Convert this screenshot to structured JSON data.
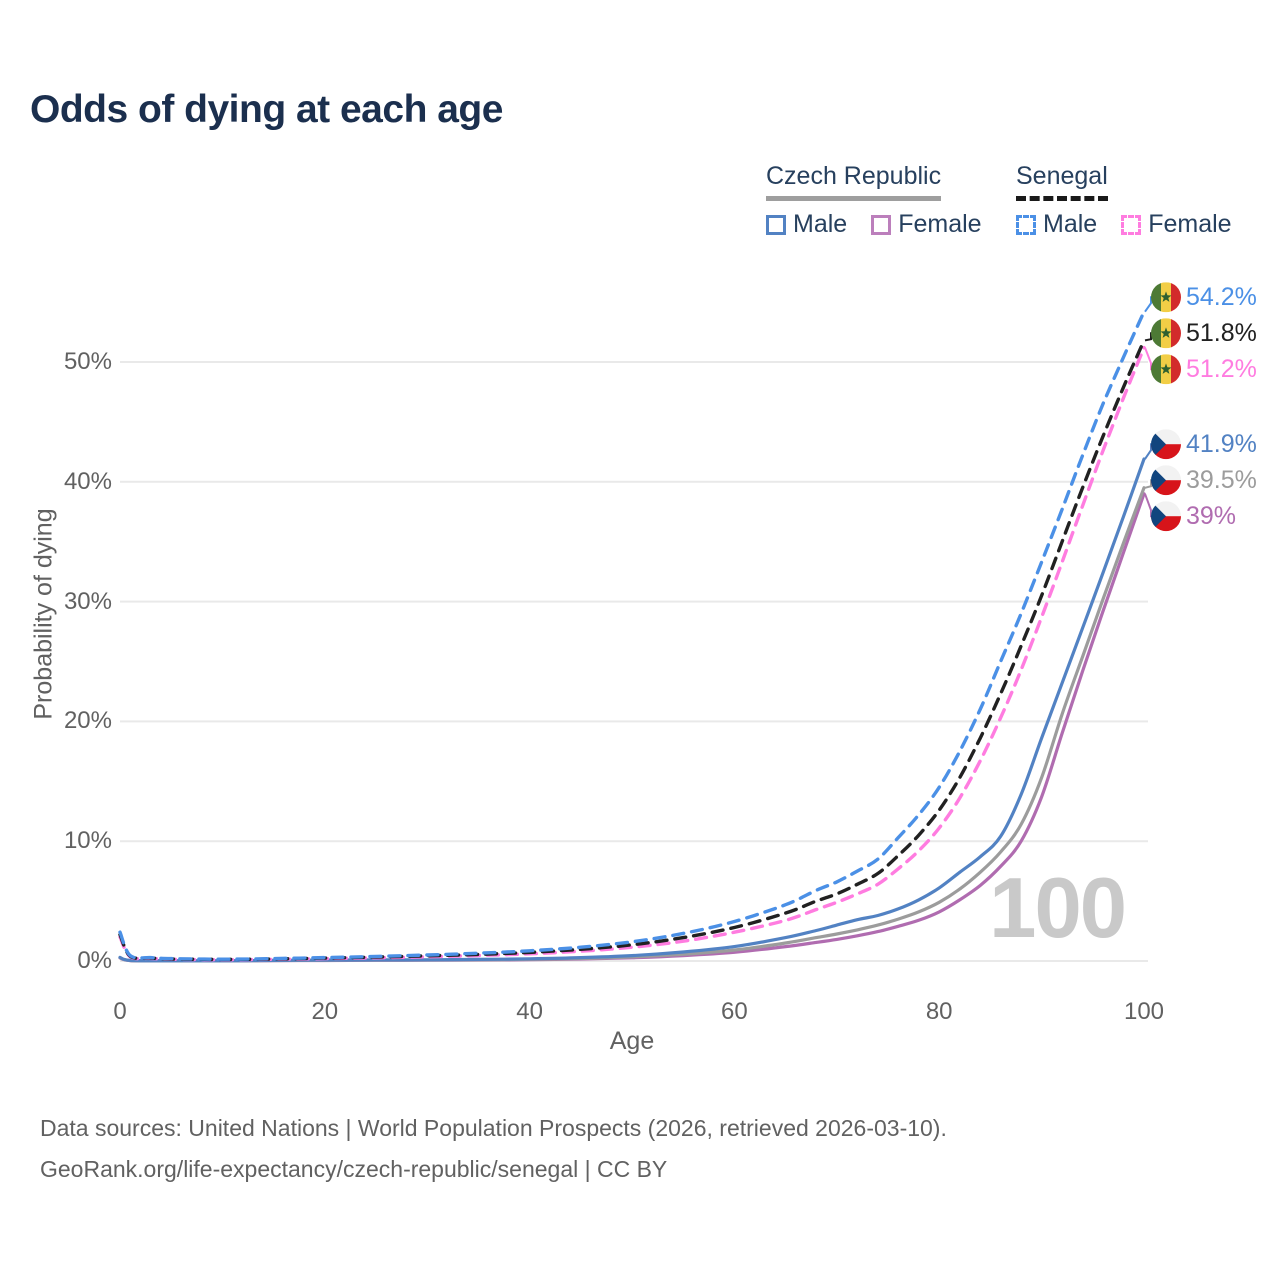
{
  "title": "Odds of dying at each age",
  "watermark_age": "100",
  "legend": {
    "groups": [
      {
        "label": "Czech Republic",
        "slug": "czech-republic",
        "line_style": "solid",
        "underline_color": "#9e9e9e",
        "items": [
          {
            "label": "Male",
            "color": "#5282c3",
            "dashed": false
          },
          {
            "label": "Female",
            "color": "#bc7fbc",
            "dashed": false
          }
        ]
      },
      {
        "label": "Senegal",
        "slug": "senegal",
        "line_style": "dashed",
        "underline_color": "#1a1a1a",
        "items": [
          {
            "label": "Male",
            "color": "#4b90e6",
            "dashed": true
          },
          {
            "label": "Female",
            "color": "#ff7ce0",
            "dashed": true
          }
        ]
      }
    ]
  },
  "axes": {
    "x": {
      "label": "Age",
      "tick_labels": [
        "0",
        "20",
        "40",
        "60",
        "80",
        "100"
      ],
      "tick_values": [
        0,
        20,
        40,
        60,
        80,
        100
      ],
      "range": [
        0,
        100
      ]
    },
    "y": {
      "label": "Probability of dying",
      "tick_labels": [
        "0%",
        "10%",
        "20%",
        "30%",
        "40%",
        "50%"
      ],
      "tick_values": [
        0,
        10,
        20,
        30,
        40,
        50
      ],
      "range_pct": [
        0,
        56
      ],
      "grid": true
    }
  },
  "chart_data": {
    "type": "line",
    "title": "Odds of dying at each age",
    "xlabel": "Age",
    "ylabel": "Probability of dying",
    "x_unit": "years",
    "y_unit": "percent",
    "legend_position": "top-right",
    "series": [
      {
        "name": "Czech Republic Female",
        "country": "Czech Republic",
        "sex": "Female",
        "slug": "czech-female",
        "color": "#b06cb0",
        "dashed": false,
        "flag": "cz",
        "end_label": "39%",
        "end_value": 39,
        "points": [
          [
            0,
            0.25
          ],
          [
            1,
            0.035
          ],
          [
            5,
            0.012
          ],
          [
            10,
            0.012
          ],
          [
            15,
            0.03
          ],
          [
            20,
            0.045
          ],
          [
            25,
            0.055
          ],
          [
            30,
            0.065
          ],
          [
            35,
            0.08
          ],
          [
            40,
            0.11
          ],
          [
            45,
            0.17
          ],
          [
            50,
            0.27
          ],
          [
            55,
            0.45
          ],
          [
            60,
            0.73
          ],
          [
            65,
            1.2
          ],
          [
            68,
            1.55
          ],
          [
            70,
            1.8
          ],
          [
            72,
            2.1
          ],
          [
            74,
            2.45
          ],
          [
            76,
            2.9
          ],
          [
            78,
            3.4
          ],
          [
            80,
            4.1
          ],
          [
            82,
            5.1
          ],
          [
            84,
            6.3
          ],
          [
            86,
            7.9
          ],
          [
            88,
            10.0
          ],
          [
            90,
            13.7
          ],
          [
            92,
            19.0
          ],
          [
            94,
            24.2
          ],
          [
            96,
            29.2
          ],
          [
            98,
            34.1
          ],
          [
            100,
            39.0
          ]
        ]
      },
      {
        "name": "Czech Republic Both sexes",
        "country": "Czech Republic",
        "sex": "Both",
        "slug": "czech-total",
        "color": "#9c9c9c",
        "dashed": false,
        "flag": "cz",
        "end_label": "39.5%",
        "end_value": 39.5,
        "points": [
          [
            0,
            0.28
          ],
          [
            1,
            0.04
          ],
          [
            5,
            0.015
          ],
          [
            10,
            0.015
          ],
          [
            15,
            0.04
          ],
          [
            20,
            0.06
          ],
          [
            25,
            0.07
          ],
          [
            30,
            0.08
          ],
          [
            35,
            0.1
          ],
          [
            40,
            0.14
          ],
          [
            45,
            0.21
          ],
          [
            50,
            0.34
          ],
          [
            55,
            0.56
          ],
          [
            60,
            0.92
          ],
          [
            65,
            1.5
          ],
          [
            68,
            1.95
          ],
          [
            70,
            2.25
          ],
          [
            72,
            2.6
          ],
          [
            74,
            3.0
          ],
          [
            76,
            3.5
          ],
          [
            78,
            4.1
          ],
          [
            80,
            4.9
          ],
          [
            82,
            6.0
          ],
          [
            84,
            7.4
          ],
          [
            86,
            9.1
          ],
          [
            88,
            11.4
          ],
          [
            90,
            15.3
          ],
          [
            92,
            20.6
          ],
          [
            94,
            25.4
          ],
          [
            96,
            30.2
          ],
          [
            98,
            34.9
          ],
          [
            100,
            39.5
          ]
        ]
      },
      {
        "name": "Czech Republic Male",
        "country": "Czech Republic",
        "sex": "Male",
        "slug": "czech-male",
        "color": "#5282c3",
        "dashed": false,
        "flag": "cz",
        "end_label": "41.9%",
        "end_value": 41.9,
        "points": [
          [
            0,
            0.3
          ],
          [
            1,
            0.05
          ],
          [
            5,
            0.02
          ],
          [
            10,
            0.02
          ],
          [
            15,
            0.05
          ],
          [
            20,
            0.08
          ],
          [
            25,
            0.09
          ],
          [
            30,
            0.1
          ],
          [
            35,
            0.13
          ],
          [
            40,
            0.18
          ],
          [
            45,
            0.28
          ],
          [
            50,
            0.45
          ],
          [
            55,
            0.75
          ],
          [
            60,
            1.2
          ],
          [
            65,
            1.95
          ],
          [
            68,
            2.55
          ],
          [
            70,
            3.0
          ],
          [
            72,
            3.45
          ],
          [
            74,
            3.8
          ],
          [
            76,
            4.35
          ],
          [
            78,
            5.1
          ],
          [
            80,
            6.1
          ],
          [
            82,
            7.4
          ],
          [
            84,
            8.7
          ],
          [
            86,
            10.4
          ],
          [
            88,
            13.9
          ],
          [
            90,
            18.6
          ],
          [
            92,
            23.2
          ],
          [
            94,
            27.8
          ],
          [
            96,
            32.4
          ],
          [
            98,
            37.1
          ],
          [
            100,
            41.9
          ]
        ]
      },
      {
        "name": "Senegal Female",
        "country": "Senegal",
        "sex": "Female",
        "slug": "senegal-female",
        "color": "#ff7ce0",
        "dashed": true,
        "flag": "sn",
        "end_label": "51.2%",
        "end_value": 51.2,
        "points": [
          [
            0,
            2.0
          ],
          [
            1,
            0.36
          ],
          [
            3,
            0.22
          ],
          [
            5,
            0.15
          ],
          [
            10,
            0.11
          ],
          [
            15,
            0.14
          ],
          [
            20,
            0.2
          ],
          [
            25,
            0.27
          ],
          [
            30,
            0.35
          ],
          [
            35,
            0.46
          ],
          [
            40,
            0.6
          ],
          [
            45,
            0.82
          ],
          [
            50,
            1.15
          ],
          [
            55,
            1.65
          ],
          [
            60,
            2.4
          ],
          [
            65,
            3.4
          ],
          [
            68,
            4.3
          ],
          [
            70,
            4.9
          ],
          [
            72,
            5.6
          ],
          [
            74,
            6.4
          ],
          [
            76,
            7.7
          ],
          [
            78,
            9.2
          ],
          [
            80,
            11.1
          ],
          [
            82,
            13.6
          ],
          [
            84,
            16.7
          ],
          [
            86,
            20.3
          ],
          [
            88,
            24.3
          ],
          [
            90,
            28.7
          ],
          [
            92,
            33.3
          ],
          [
            94,
            38.0
          ],
          [
            96,
            42.6
          ],
          [
            98,
            47.0
          ],
          [
            100,
            51.2
          ]
        ]
      },
      {
        "name": "Senegal Both sexes",
        "country": "Senegal",
        "sex": "Both",
        "slug": "senegal-total",
        "color": "#212121",
        "dashed": true,
        "flag": "sn",
        "end_label": "51.8%",
        "end_value": 51.8,
        "points": [
          [
            0,
            2.2
          ],
          [
            1,
            0.4
          ],
          [
            3,
            0.25
          ],
          [
            5,
            0.17
          ],
          [
            10,
            0.13
          ],
          [
            15,
            0.17
          ],
          [
            20,
            0.24
          ],
          [
            25,
            0.33
          ],
          [
            30,
            0.43
          ],
          [
            35,
            0.55
          ],
          [
            40,
            0.72
          ],
          [
            45,
            0.98
          ],
          [
            50,
            1.35
          ],
          [
            55,
            1.95
          ],
          [
            60,
            2.8
          ],
          [
            65,
            4.0
          ],
          [
            68,
            5.0
          ],
          [
            70,
            5.6
          ],
          [
            72,
            6.4
          ],
          [
            74,
            7.3
          ],
          [
            76,
            8.8
          ],
          [
            78,
            10.5
          ],
          [
            80,
            12.6
          ],
          [
            82,
            15.3
          ],
          [
            84,
            18.6
          ],
          [
            86,
            22.3
          ],
          [
            88,
            26.3
          ],
          [
            90,
            30.5
          ],
          [
            92,
            35.0
          ],
          [
            94,
            39.5
          ],
          [
            96,
            43.8
          ],
          [
            98,
            47.9
          ],
          [
            100,
            51.8
          ]
        ]
      },
      {
        "name": "Senegal Male",
        "country": "Senegal",
        "sex": "Male",
        "slug": "senegal-male",
        "color": "#4b90e6",
        "dashed": true,
        "flag": "sn",
        "end_label": "54.2%",
        "end_value": 54.2,
        "points": [
          [
            0,
            2.4
          ],
          [
            1,
            0.45
          ],
          [
            3,
            0.28
          ],
          [
            5,
            0.2
          ],
          [
            10,
            0.15
          ],
          [
            15,
            0.2
          ],
          [
            20,
            0.28
          ],
          [
            25,
            0.38
          ],
          [
            30,
            0.5
          ],
          [
            35,
            0.65
          ],
          [
            40,
            0.85
          ],
          [
            45,
            1.15
          ],
          [
            50,
            1.6
          ],
          [
            55,
            2.3
          ],
          [
            60,
            3.3
          ],
          [
            65,
            4.7
          ],
          [
            68,
            5.9
          ],
          [
            70,
            6.6
          ],
          [
            72,
            7.5
          ],
          [
            74,
            8.5
          ],
          [
            76,
            10.3
          ],
          [
            78,
            12.2
          ],
          [
            80,
            14.5
          ],
          [
            82,
            17.5
          ],
          [
            84,
            21.0
          ],
          [
            86,
            25.0
          ],
          [
            88,
            29.0
          ],
          [
            90,
            33.3
          ],
          [
            92,
            37.7
          ],
          [
            94,
            42.2
          ],
          [
            96,
            46.5
          ],
          [
            98,
            50.4
          ],
          [
            100,
            54.2
          ]
        ]
      }
    ]
  },
  "colors": {
    "title": "#1b2f4e",
    "axis_text": "#616161",
    "gridline": "#e9e9e9",
    "watermark": "#c9c9c9",
    "flag_cz": {
      "white": "#f2f2f2",
      "red": "#d7141a",
      "blue": "#11457e"
    },
    "flag_sn": {
      "green": "#4d7a35",
      "yellow": "#f2ce46",
      "red": "#d22b2b",
      "star": "#2f6030"
    }
  },
  "footer": {
    "line1": "Data sources: United Nations | World Population Prospects (2026, retrieved 2026-03-10).",
    "line2": "GeoRank.org/life-expectancy/czech-republic/senegal | CC BY"
  }
}
